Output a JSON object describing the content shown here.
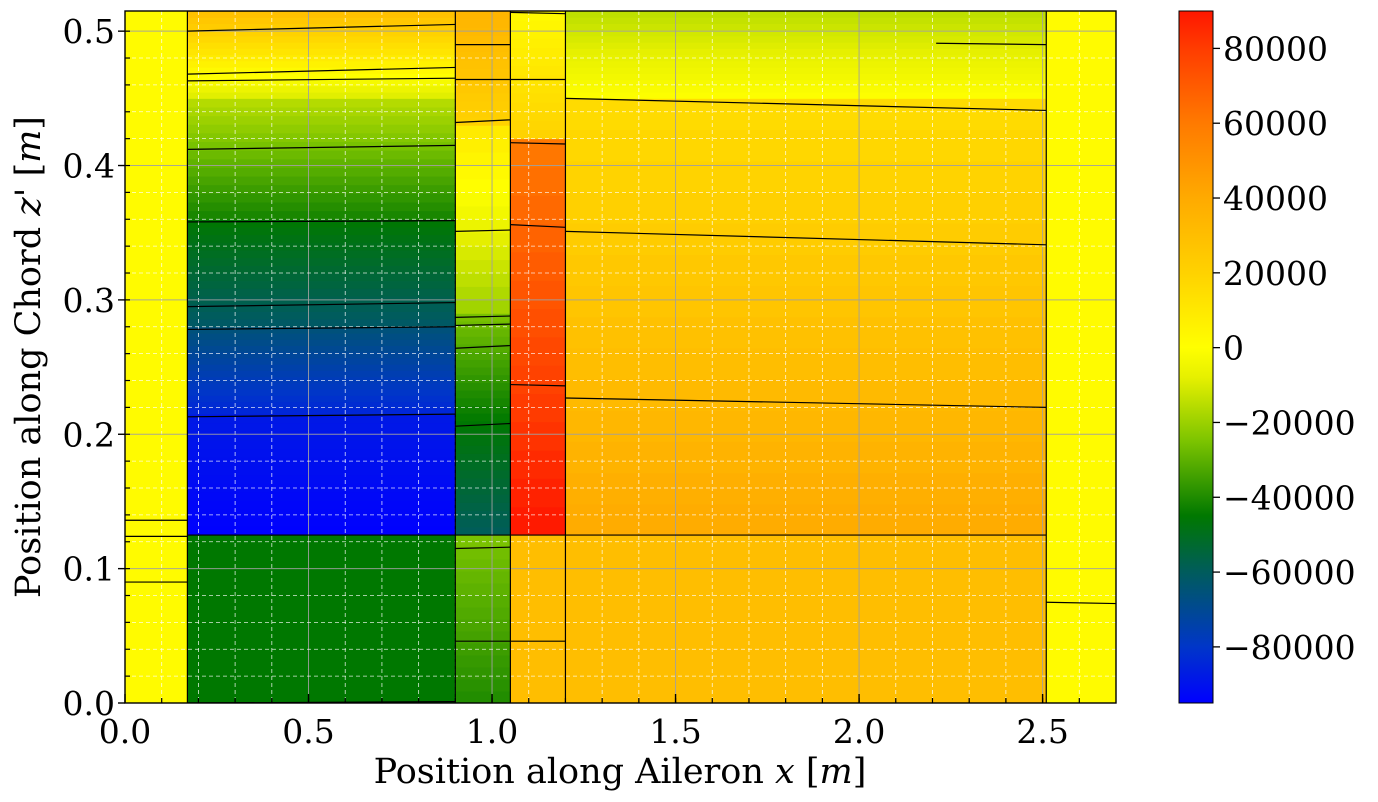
{
  "chart_data": {
    "type": "heatmap",
    "title": "",
    "xlabel": "Position along Aileron $x$ [$m$]",
    "ylabel": "Position along Chord $z'$ [$m$]",
    "xlim": [
      0.0,
      2.7
    ],
    "ylim": [
      0.0,
      0.515
    ],
    "xticks": [
      0.0,
      0.5,
      1.0,
      1.5,
      2.0,
      2.5
    ],
    "yticks": [
      0.0,
      0.1,
      0.2,
      0.3,
      0.4,
      0.5
    ],
    "xtick_labels": [
      "0.0",
      "0.5",
      "1.0",
      "1.5",
      "2.0",
      "2.5"
    ],
    "ytick_labels": [
      "0.0",
      "0.1",
      "0.2",
      "0.3",
      "0.4",
      "0.5"
    ],
    "grid": true,
    "colorbar": {
      "min": -95000,
      "max": 90000,
      "ticks": [
        80000,
        60000,
        40000,
        20000,
        0,
        -20000,
        -40000,
        -60000,
        -80000
      ],
      "tick_labels": [
        "80000",
        "60000",
        "40000",
        "20000",
        "0",
        "−20000",
        "−40000",
        "−60000",
        "−80000"
      ],
      "colors": [
        [
          -95000,
          "#0000ff"
        ],
        [
          -80000,
          "#0036c8"
        ],
        [
          -60000,
          "#005c5c"
        ],
        [
          -45000,
          "#007800"
        ],
        [
          -25000,
          "#7cc400"
        ],
        [
          -8000,
          "#e6f000"
        ],
        [
          0,
          "#ffff00"
        ],
        [
          20000,
          "#ffd200"
        ],
        [
          40000,
          "#ffaa00"
        ],
        [
          60000,
          "#ff7a00"
        ],
        [
          80000,
          "#ff3c00"
        ],
        [
          90000,
          "#ff1600"
        ]
      ]
    },
    "field": [
      {
        "x": [
          0.0,
          0.17
        ],
        "z": [
          0.0,
          0.515
        ],
        "v": [
          2000,
          2000
        ]
      },
      {
        "x": [
          0.17,
          0.9
        ],
        "z": [
          0.0,
          0.125
        ],
        "v": [
          -45000,
          -45000
        ]
      },
      {
        "x": [
          0.17,
          0.9
        ],
        "z": [
          0.125,
          0.215
        ],
        "v": [
          -95000,
          -88000
        ]
      },
      {
        "x": [
          0.17,
          0.9
        ],
        "z": [
          0.215,
          0.28
        ],
        "v": [
          -85000,
          -65000
        ]
      },
      {
        "x": [
          0.17,
          0.9
        ],
        "z": [
          0.28,
          0.36
        ],
        "v": [
          -62000,
          -45000
        ]
      },
      {
        "x": [
          0.17,
          0.9
        ],
        "z": [
          0.36,
          0.45
        ],
        "v": [
          -42000,
          -15000
        ]
      },
      {
        "x": [
          0.17,
          0.9
        ],
        "z": [
          0.45,
          0.515
        ],
        "v": [
          -10000,
          30000
        ]
      },
      {
        "x": [
          0.9,
          1.05
        ],
        "z": [
          0.0,
          0.125
        ],
        "v": [
          -40000,
          -25000
        ]
      },
      {
        "x": [
          0.9,
          1.05
        ],
        "z": [
          0.125,
          0.21
        ],
        "v": [
          -60000,
          -45000
        ]
      },
      {
        "x": [
          0.9,
          1.05
        ],
        "z": [
          0.21,
          0.29
        ],
        "v": [
          -45000,
          -25000
        ]
      },
      {
        "x": [
          0.9,
          1.05
        ],
        "z": [
          0.29,
          0.43
        ],
        "v": [
          -20000,
          10000
        ]
      },
      {
        "x": [
          0.9,
          1.05
        ],
        "z": [
          0.43,
          0.515
        ],
        "v": [
          20000,
          35000
        ]
      },
      {
        "x": [
          1.05,
          1.2
        ],
        "z": [
          0.0,
          0.125
        ],
        "v": [
          30000,
          30000
        ]
      },
      {
        "x": [
          1.05,
          1.2
        ],
        "z": [
          0.125,
          0.42
        ],
        "v": [
          90000,
          60000
        ]
      },
      {
        "x": [
          1.05,
          1.2
        ],
        "z": [
          0.42,
          0.515
        ],
        "v": [
          20000,
          2000
        ]
      },
      {
        "x": [
          1.2,
          2.51
        ],
        "z": [
          0.0,
          0.125
        ],
        "v": [
          30000,
          30000
        ]
      },
      {
        "x": [
          1.2,
          2.51
        ],
        "z": [
          0.125,
          0.45
        ],
        "v": [
          40000,
          15000
        ]
      },
      {
        "x": [
          1.2,
          2.51
        ],
        "z": [
          0.45,
          0.515
        ],
        "v": [
          0,
          -15000
        ]
      },
      {
        "x": [
          2.51,
          2.7
        ],
        "z": [
          0.0,
          0.515
        ],
        "v": [
          2000,
          2000
        ]
      }
    ],
    "outlines": [
      [
        [
          0.17,
          0.0
        ],
        [
          0.17,
          0.515
        ]
      ],
      [
        [
          0.9,
          0.0
        ],
        [
          0.9,
          0.515
        ]
      ],
      [
        [
          1.05,
          0.0
        ],
        [
          1.05,
          0.515
        ]
      ],
      [
        [
          1.2,
          0.0
        ],
        [
          1.2,
          0.515
        ]
      ],
      [
        [
          2.51,
          0.0
        ],
        [
          2.51,
          0.515
        ]
      ],
      [
        [
          0.0,
          0.136
        ],
        [
          0.17,
          0.136
        ]
      ],
      [
        [
          0.0,
          0.124
        ],
        [
          0.17,
          0.124
        ]
      ],
      [
        [
          0.0,
          0.09
        ],
        [
          0.17,
          0.09
        ]
      ],
      [
        [
          0.17,
          0.0
        ],
        [
          0.9,
          0.001
        ]
      ],
      [
        [
          0.17,
          0.125
        ],
        [
          0.9,
          0.125
        ]
      ],
      [
        [
          0.17,
          0.213
        ],
        [
          0.9,
          0.215
        ]
      ],
      [
        [
          0.17,
          0.278
        ],
        [
          0.9,
          0.28
        ]
      ],
      [
        [
          0.17,
          0.295
        ],
        [
          0.9,
          0.298
        ]
      ],
      [
        [
          0.17,
          0.358
        ],
        [
          0.9,
          0.359
        ]
      ],
      [
        [
          0.17,
          0.412
        ],
        [
          0.9,
          0.415
        ]
      ],
      [
        [
          0.17,
          0.463
        ],
        [
          0.9,
          0.465
        ]
      ],
      [
        [
          0.17,
          0.468
        ],
        [
          0.9,
          0.473
        ]
      ],
      [
        [
          0.17,
          0.5
        ],
        [
          0.9,
          0.505
        ]
      ],
      [
        [
          0.17,
          0.515
        ],
        [
          0.9,
          0.515
        ]
      ],
      [
        [
          0.9,
          0.046
        ],
        [
          1.2,
          0.046
        ]
      ],
      [
        [
          0.9,
          0.115
        ],
        [
          1.05,
          0.116
        ]
      ],
      [
        [
          0.9,
          0.125
        ],
        [
          2.51,
          0.125
        ]
      ],
      [
        [
          0.9,
          0.206
        ],
        [
          1.05,
          0.208
        ]
      ],
      [
        [
          0.9,
          0.264
        ],
        [
          1.05,
          0.266
        ]
      ],
      [
        [
          0.9,
          0.281
        ],
        [
          1.05,
          0.282
        ]
      ],
      [
        [
          0.9,
          0.287
        ],
        [
          1.05,
          0.288
        ]
      ],
      [
        [
          0.9,
          0.351
        ],
        [
          1.05,
          0.352
        ]
      ],
      [
        [
          0.9,
          0.432
        ],
        [
          1.05,
          0.434
        ]
      ],
      [
        [
          0.9,
          0.464
        ],
        [
          1.2,
          0.464
        ]
      ],
      [
        [
          0.9,
          0.49
        ],
        [
          1.05,
          0.49
        ]
      ],
      [
        [
          1.05,
          0.237
        ],
        [
          1.2,
          0.236
        ]
      ],
      [
        [
          1.05,
          0.356
        ],
        [
          1.2,
          0.354
        ]
      ],
      [
        [
          1.05,
          0.417
        ],
        [
          1.2,
          0.416
        ]
      ],
      [
        [
          1.05,
          0.514
        ],
        [
          1.2,
          0.513
        ]
      ],
      [
        [
          1.2,
          0.227
        ],
        [
          2.51,
          0.22
        ]
      ],
      [
        [
          1.2,
          0.351
        ],
        [
          2.51,
          0.341
        ]
      ],
      [
        [
          1.2,
          0.45
        ],
        [
          2.51,
          0.441
        ]
      ],
      [
        [
          2.21,
          0.491
        ],
        [
          2.51,
          0.49
        ]
      ],
      [
        [
          2.51,
          0.075
        ],
        [
          2.7,
          0.074
        ]
      ]
    ]
  }
}
